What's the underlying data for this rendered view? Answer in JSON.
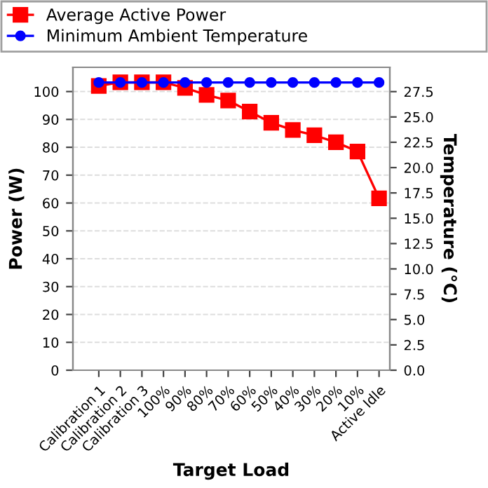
{
  "chart_data": {
    "type": "line",
    "xlabel": "Target Load",
    "ylabel": "Power (W)",
    "y2label": "Temperature (°C)",
    "categories": [
      "Calibration 1",
      "Calibration 2",
      "Calibration 3",
      "100%",
      "90%",
      "80%",
      "70%",
      "60%",
      "50%",
      "40%",
      "30%",
      "20%",
      "10%",
      "Active Idle"
    ],
    "series": [
      {
        "name": "Average Active Power",
        "color": "#ff0000",
        "marker": "square",
        "values": [
          102.0,
          103.3,
          103.3,
          103.3,
          101.3,
          98.8,
          96.8,
          92.8,
          88.8,
          86.2,
          84.3,
          81.8,
          78.5,
          61.7
        ]
      },
      {
        "name": "Minimum Ambient Temperature",
        "color": "#0000ff",
        "marker": "circle",
        "axis": "y2",
        "values": [
          28.4,
          28.4,
          28.4,
          28.4,
          28.4,
          28.4,
          28.4,
          28.4,
          28.4,
          28.4,
          28.4,
          28.4,
          28.4,
          28.4
        ]
      }
    ],
    "ylim": [
      0,
      108.7
    ],
    "yticks": [
      0,
      10,
      20,
      30,
      40,
      50,
      60,
      70,
      80,
      90,
      100
    ],
    "y2lim": [
      0,
      29.9
    ],
    "y2ticks": [
      {
        "value": 0,
        "label": "0.0"
      },
      {
        "value": 2.5,
        "label": "2.5"
      },
      {
        "value": 5,
        "label": "5.0"
      },
      {
        "value": 7.5,
        "label": "7.5"
      },
      {
        "value": 10,
        "label": "10.0"
      },
      {
        "value": 12.5,
        "label": "12.5"
      },
      {
        "value": 15,
        "label": "15.0"
      },
      {
        "value": 17.5,
        "label": "17.5"
      },
      {
        "value": 20,
        "label": "20.0"
      },
      {
        "value": 22.5,
        "label": "22.5"
      },
      {
        "value": 25,
        "label": "25.0"
      },
      {
        "value": 27.5,
        "label": "27.5"
      }
    ],
    "grid": "y",
    "legend": "top",
    "line_style": "solid"
  }
}
